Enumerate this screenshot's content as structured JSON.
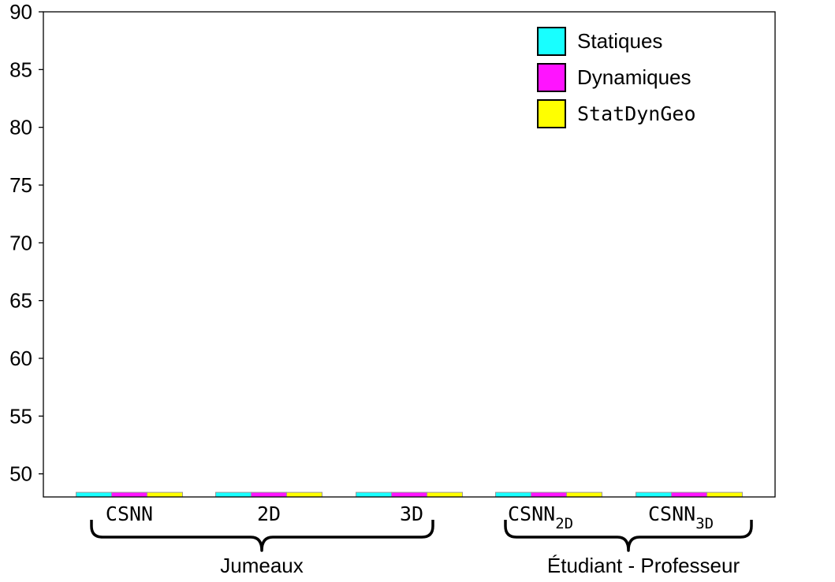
{
  "chart_data": {
    "type": "bar",
    "ylim": [
      48,
      90
    ],
    "yticks": [
      50,
      55,
      60,
      65,
      70,
      75,
      80,
      85,
      90
    ],
    "categories": [
      {
        "base": "CSNN",
        "sub": ""
      },
      {
        "base": "2D",
        "sub": ""
      },
      {
        "base": "3D",
        "sub": ""
      },
      {
        "base": "CSNN",
        "sub": "2D"
      },
      {
        "base": "CSNN",
        "sub": "3D"
      }
    ],
    "series": [
      {
        "name": "Statiques",
        "color": "#18ffff",
        "values": [
          48.4,
          48.4,
          48.4,
          48.4,
          48.4
        ]
      },
      {
        "name": "Dynamiques",
        "color": "#ff14ff",
        "values": [
          48.4,
          48.4,
          48.4,
          48.4,
          48.4
        ]
      },
      {
        "name": "StatDynGeo",
        "color": "#ffff00",
        "values": [
          48.4,
          48.4,
          48.4,
          48.4,
          48.4
        ]
      }
    ],
    "groups": [
      {
        "label": "Jumeaux",
        "categories": [
          0,
          1,
          2
        ]
      },
      {
        "label": "Étudiant - Professeur",
        "categories": [
          3,
          4
        ]
      }
    ],
    "legend_position": "top-right",
    "grid": false
  }
}
